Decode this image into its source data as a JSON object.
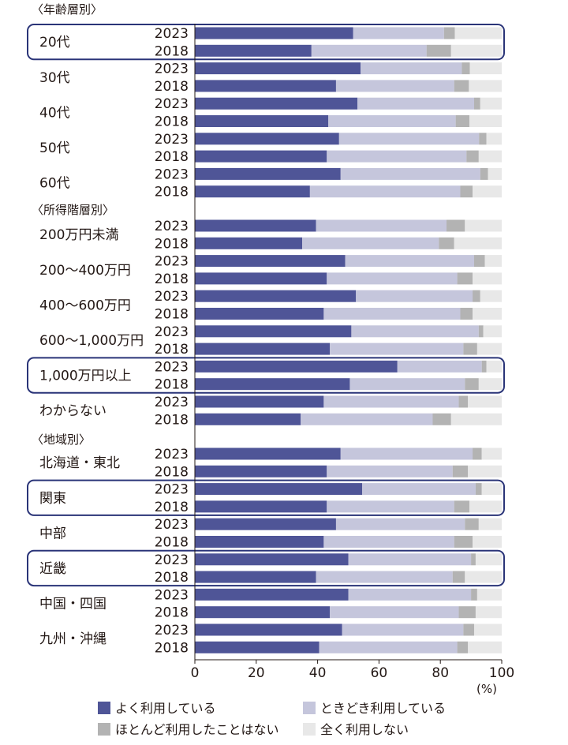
{
  "colors": {
    "often": "#4f5597",
    "sometimes": "#c5c6dc",
    "rarely": "#b3b3b3",
    "never": "#e8e8e8",
    "highlight": "#2a3478",
    "text": "#231815"
  },
  "chart_data": {
    "type": "bar",
    "orientation": "horizontal",
    "stacked": true,
    "xlim": [
      0,
      100
    ],
    "xticks": [
      "0",
      "20",
      "40",
      "60",
      "80",
      "100"
    ],
    "unit": "(%)",
    "series_names": [
      "よく利用している",
      "ときどき利用している",
      "ほとんど利用したことはない",
      "全く利用しない"
    ],
    "sections": [
      {
        "title": "〈年齢層別〉",
        "groups": [
          {
            "label": "20代",
            "highlight": true,
            "rows": [
              {
                "year": "2023",
                "values": [
                  51.6,
                  29.6,
                  3.5,
                  15.3
                ]
              },
              {
                "year": "2018",
                "values": [
                  38.0,
                  37.5,
                  8.0,
                  16.5
                ]
              }
            ]
          },
          {
            "label": "30代",
            "highlight": false,
            "rows": [
              {
                "year": "2023",
                "values": [
                  54.0,
                  33.0,
                  2.6,
                  10.4
                ]
              },
              {
                "year": "2018",
                "values": [
                  46.0,
                  38.5,
                  4.8,
                  10.7
                ]
              }
            ]
          },
          {
            "label": "40代",
            "highlight": false,
            "rows": [
              {
                "year": "2023",
                "values": [
                  53.0,
                  38.0,
                  2.0,
                  7.0
                ]
              },
              {
                "year": "2018",
                "values": [
                  43.5,
                  41.5,
                  4.5,
                  10.5
                ]
              }
            ]
          },
          {
            "label": "50代",
            "highlight": false,
            "rows": [
              {
                "year": "2023",
                "values": [
                  47.0,
                  45.6,
                  2.4,
                  5.0
                ]
              },
              {
                "year": "2018",
                "values": [
                  43.0,
                  45.5,
                  4.0,
                  7.5
                ]
              }
            ]
          },
          {
            "label": "60代",
            "highlight": false,
            "rows": [
              {
                "year": "2023",
                "values": [
                  47.5,
                  45.5,
                  2.5,
                  4.5
                ]
              },
              {
                "year": "2018",
                "values": [
                  37.5,
                  49.0,
                  4.0,
                  9.5
                ]
              }
            ]
          }
        ]
      },
      {
        "title": "〈所得階層別〉",
        "groups": [
          {
            "label": "200万円未満",
            "highlight": false,
            "rows": [
              {
                "year": "2023",
                "values": [
                  39.5,
                  42.5,
                  6.0,
                  12.0
                ]
              },
              {
                "year": "2018",
                "values": [
                  35.0,
                  44.5,
                  5.0,
                  15.5
                ]
              }
            ]
          },
          {
            "label": "200〜400万円",
            "highlight": false,
            "rows": [
              {
                "year": "2023",
                "values": [
                  49.0,
                  42.0,
                  3.5,
                  5.5
                ]
              },
              {
                "year": "2018",
                "values": [
                  43.0,
                  42.5,
                  5.0,
                  9.5
                ]
              }
            ]
          },
          {
            "label": "400〜600万円",
            "highlight": false,
            "rows": [
              {
                "year": "2023",
                "values": [
                  52.5,
                  38.0,
                  2.5,
                  7.0
                ]
              },
              {
                "year": "2018",
                "values": [
                  42.0,
                  44.5,
                  4.0,
                  9.5
                ]
              }
            ]
          },
          {
            "label": "600〜1,000万円",
            "highlight": false,
            "rows": [
              {
                "year": "2023",
                "values": [
                  51.0,
                  41.5,
                  1.5,
                  6.0
                ]
              },
              {
                "year": "2018",
                "values": [
                  44.0,
                  43.5,
                  4.5,
                  8.0
                ]
              }
            ]
          },
          {
            "label": "1,000万円以上",
            "highlight": true,
            "rows": [
              {
                "year": "2023",
                "values": [
                  66.0,
                  27.5,
                  1.5,
                  5.0
                ]
              },
              {
                "year": "2018",
                "values": [
                  50.5,
                  37.5,
                  4.5,
                  7.5
                ]
              }
            ]
          },
          {
            "label": "わからない",
            "highlight": false,
            "rows": [
              {
                "year": "2023",
                "values": [
                  42.0,
                  44.0,
                  3.0,
                  11.0
                ]
              },
              {
                "year": "2018",
                "values": [
                  34.5,
                  43.0,
                  6.0,
                  16.5
                ]
              }
            ]
          }
        ]
      },
      {
        "title": "〈地域別〉",
        "groups": [
          {
            "label": "北海道・東北",
            "highlight": false,
            "rows": [
              {
                "year": "2023",
                "values": [
                  47.5,
                  43.0,
                  3.0,
                  6.5
                ]
              },
              {
                "year": "2018",
                "values": [
                  43.0,
                  41.0,
                  5.0,
                  11.0
                ]
              }
            ]
          },
          {
            "label": "関東",
            "highlight": true,
            "rows": [
              {
                "year": "2023",
                "values": [
                  54.5,
                  37.0,
                  2.0,
                  6.5
                ]
              },
              {
                "year": "2018",
                "values": [
                  43.0,
                  41.5,
                  5.0,
                  10.5
                ]
              }
            ]
          },
          {
            "label": "中部",
            "highlight": false,
            "rows": [
              {
                "year": "2023",
                "values": [
                  46.0,
                  42.0,
                  4.5,
                  7.5
                ]
              },
              {
                "year": "2018",
                "values": [
                  42.0,
                  42.5,
                  6.0,
                  9.5
                ]
              }
            ]
          },
          {
            "label": "近畿",
            "highlight": true,
            "rows": [
              {
                "year": "2023",
                "values": [
                  50.0,
                  40.0,
                  1.5,
                  8.5
                ]
              },
              {
                "year": "2018",
                "values": [
                  39.5,
                  44.5,
                  4.0,
                  12.0
                ]
              }
            ]
          },
          {
            "label": "中国・四国",
            "highlight": false,
            "rows": [
              {
                "year": "2023",
                "values": [
                  50.0,
                  40.0,
                  2.0,
                  8.0
                ]
              },
              {
                "year": "2018",
                "values": [
                  44.0,
                  42.0,
                  5.5,
                  8.5
                ]
              }
            ]
          },
          {
            "label": "九州・沖縄",
            "highlight": false,
            "rows": [
              {
                "year": "2023",
                "values": [
                  48.0,
                  39.5,
                  3.5,
                  9.0
                ]
              },
              {
                "year": "2018",
                "values": [
                  40.5,
                  45.0,
                  3.5,
                  11.0
                ]
              }
            ]
          }
        ]
      }
    ]
  }
}
